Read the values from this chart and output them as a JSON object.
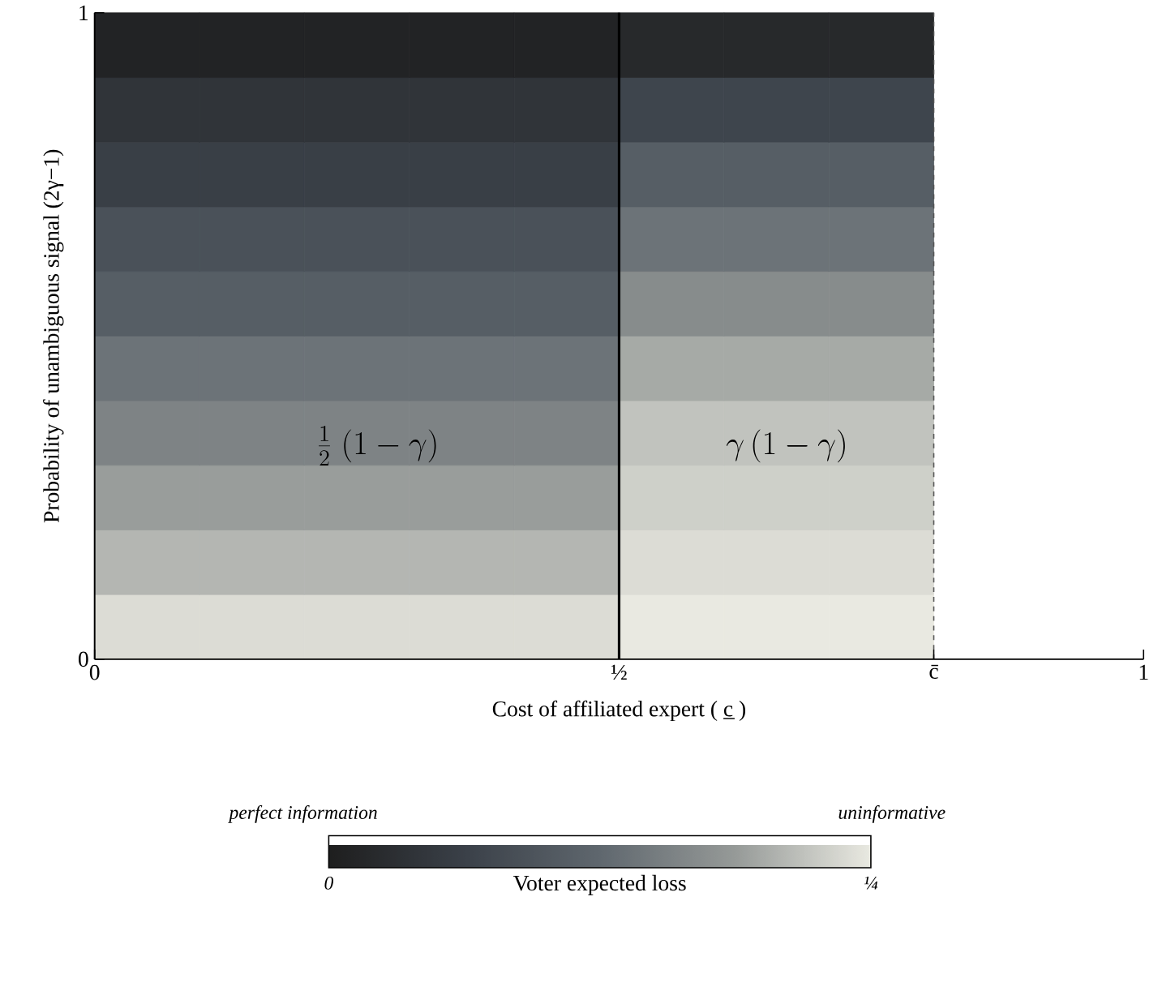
{
  "chart_data": {
    "type": "heatmap",
    "xlabel": "Cost of affiliated expert ( c̲ )",
    "ylabel": "Probability of unambiguous signal (2γ−1)",
    "clabel": "Voter expected loss",
    "x": [
      0.05,
      0.15,
      0.25,
      0.35,
      0.45,
      0.55,
      0.65,
      0.75
    ],
    "y": [
      0.95,
      0.85,
      0.75,
      0.65,
      0.55,
      0.45,
      0.35,
      0.25,
      0.15,
      0.05
    ],
    "cells": [
      [
        0.01,
        0.01,
        0.01,
        0.01,
        0.01,
        0.02,
        0.02,
        0.02
      ],
      [
        0.04,
        0.04,
        0.04,
        0.04,
        0.04,
        0.07,
        0.07,
        0.07
      ],
      [
        0.06,
        0.06,
        0.06,
        0.06,
        0.06,
        0.11,
        0.11,
        0.11
      ],
      [
        0.09,
        0.09,
        0.09,
        0.09,
        0.09,
        0.14,
        0.14,
        0.14
      ],
      [
        0.11,
        0.11,
        0.11,
        0.11,
        0.11,
        0.17,
        0.17,
        0.17
      ],
      [
        0.14,
        0.14,
        0.14,
        0.14,
        0.14,
        0.2,
        0.2,
        0.2
      ],
      [
        0.16,
        0.16,
        0.16,
        0.16,
        0.16,
        0.22,
        0.22,
        0.22
      ],
      [
        0.19,
        0.19,
        0.19,
        0.19,
        0.19,
        0.23,
        0.23,
        0.23
      ],
      [
        0.21,
        0.21,
        0.21,
        0.21,
        0.21,
        0.24,
        0.24,
        0.24
      ],
      [
        0.24,
        0.24,
        0.24,
        0.24,
        0.24,
        0.25,
        0.25,
        0.25
      ]
    ],
    "clim": [
      0,
      0.25
    ],
    "cticks": [
      {
        "value": 0,
        "label": "0"
      },
      {
        "value": 0.25,
        "label": "¼"
      }
    ],
    "xlim": [
      0,
      1
    ],
    "ylim": [
      0,
      1
    ],
    "xticks": [
      0,
      {
        "value": 0.5,
        "label": "½"
      },
      {
        "value": 0.8,
        "label": "c̄"
      },
      1
    ],
    "yticks": [
      0,
      1
    ],
    "ref_lines": [
      {
        "axis": "x",
        "value": 0.5,
        "color": "#000000",
        "line_style": "solid"
      },
      {
        "axis": "x",
        "value": 0.8,
        "color": "#555555",
        "line_style": "dashed"
      }
    ],
    "annotations": [
      "\\frac{1}{2}\\;(1-\\gamma)",
      "\\gamma\\,(1-\\gamma)",
      "perfect information",
      "uninformative"
    ]
  }
}
